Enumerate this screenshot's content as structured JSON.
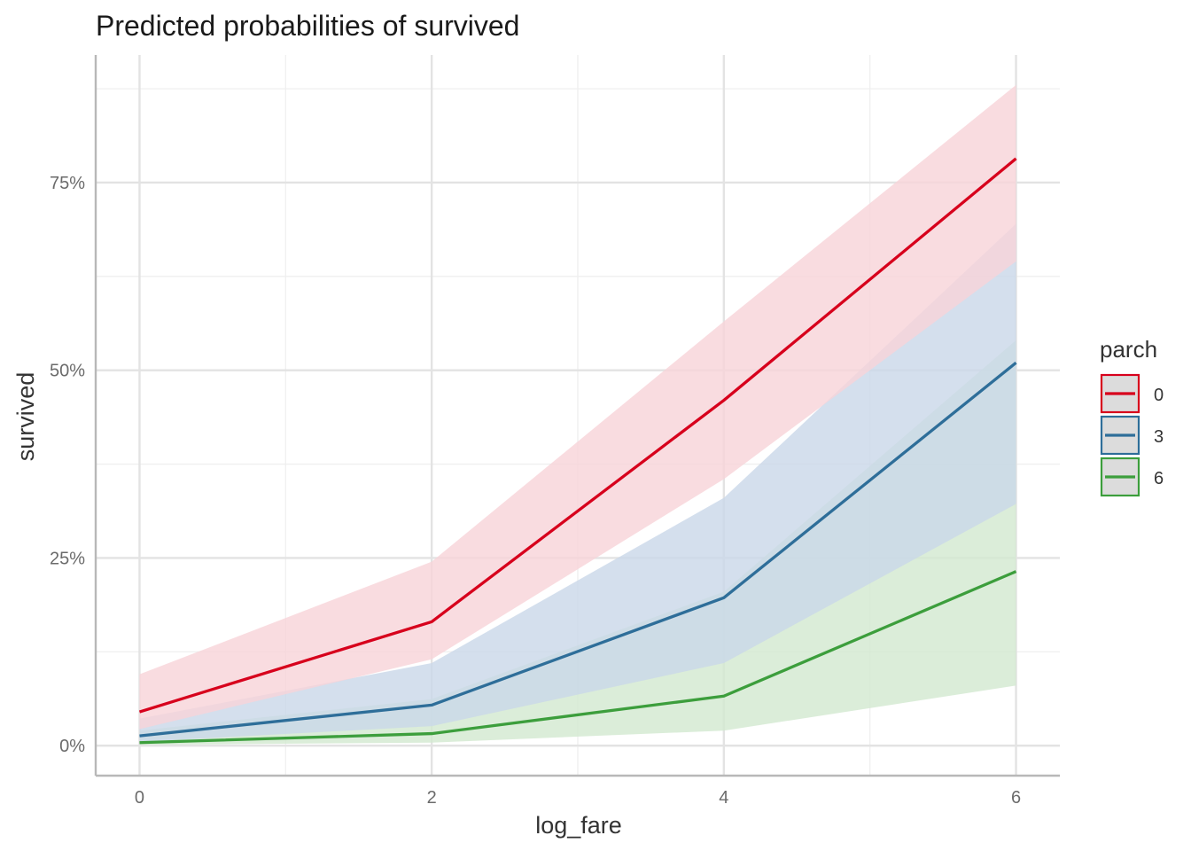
{
  "chart_data": {
    "type": "line",
    "title": "Predicted probabilities of survived",
    "xlabel": "log_fare",
    "ylabel": "survived",
    "x": [
      0,
      2,
      4,
      6
    ],
    "xlim": [
      -0.3,
      6.3
    ],
    "ylim": [
      -0.04,
      0.92
    ],
    "x_ticks": [
      0,
      2,
      4,
      6
    ],
    "y_ticks": [
      0,
      0.25,
      0.5,
      0.75
    ],
    "y_tick_labels": [
      "0%",
      "25%",
      "50%",
      "75%"
    ],
    "grid": true,
    "legend": {
      "title": "parch",
      "position": "right"
    },
    "series": [
      {
        "name": "0",
        "color": "#D7001C",
        "fill": "#F7D3D8",
        "values": [
          0.045,
          0.165,
          0.46,
          0.782
        ],
        "lower": [
          0.022,
          0.115,
          0.355,
          0.645
        ],
        "upper": [
          0.095,
          0.245,
          0.565,
          0.88
        ]
      },
      {
        "name": "3",
        "color": "#2E6E99",
        "fill": "#C9D7E8",
        "values": [
          0.013,
          0.054,
          0.197,
          0.51
        ],
        "lower": [
          0.005,
          0.026,
          0.11,
          0.322
        ],
        "upper": [
          0.036,
          0.11,
          0.33,
          0.695
        ]
      },
      {
        "name": "6",
        "color": "#3C9E3C",
        "fill": "#D2E8CF",
        "values": [
          0.004,
          0.016,
          0.066,
          0.232
        ],
        "lower": [
          0.001,
          0.004,
          0.02,
          0.08
        ],
        "upper": [
          0.02,
          0.062,
          0.205,
          0.54
        ]
      }
    ]
  }
}
